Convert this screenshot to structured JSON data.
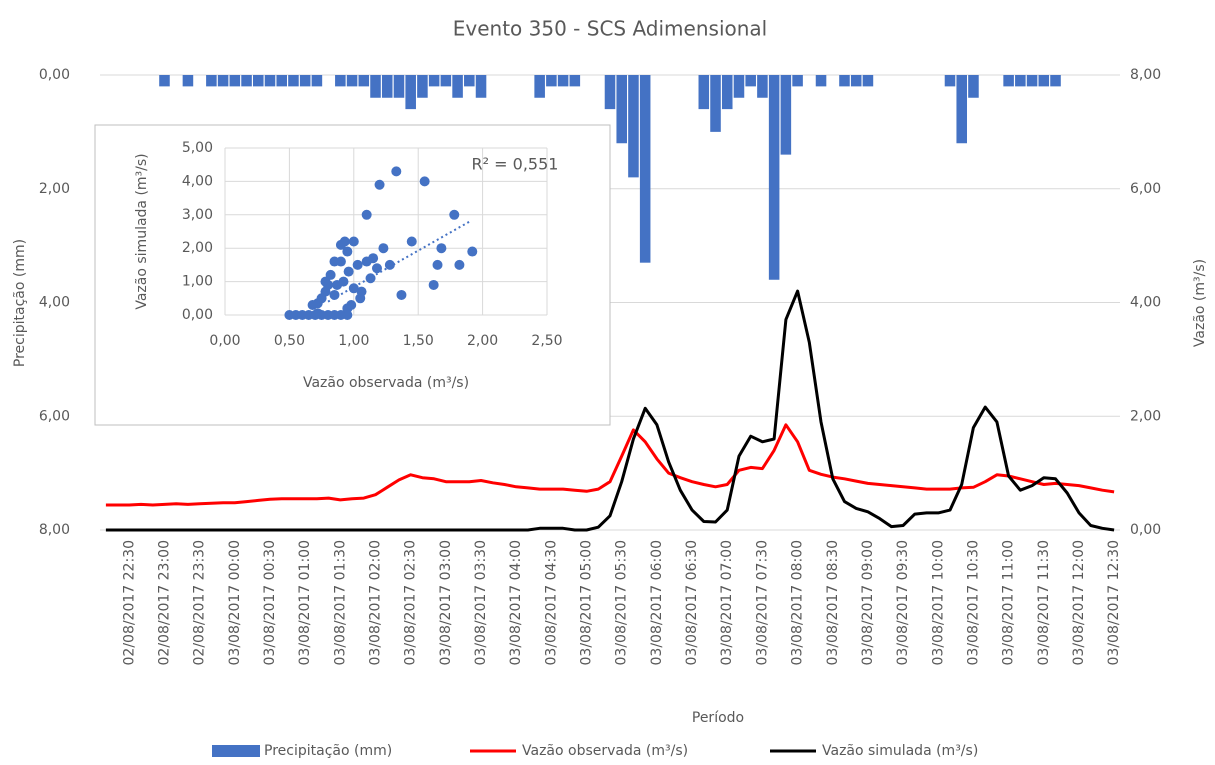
{
  "chart_data": [
    {
      "type": "combo",
      "title": "Evento 350 - SCS Adimensional",
      "x_label": "Período",
      "y_label": "Precipitação (mm)",
      "y2_label": "Vazão (m³/s)",
      "categories": [
        null,
        null,
        "02/08/2017 22:30",
        null,
        null,
        "02/08/2017 23:00",
        null,
        null,
        "02/08/2017 23:30",
        null,
        null,
        "03/08/2017 00:00",
        null,
        null,
        "03/08/2017 00:30",
        null,
        null,
        "03/08/2017 01:00",
        null,
        null,
        "03/08/2017 01:30",
        null,
        null,
        "03/08/2017 02:00",
        null,
        null,
        "03/08/2017 02:30",
        null,
        null,
        "03/08/2017 03:00",
        null,
        null,
        "03/08/2017 03:30",
        null,
        null,
        "03/08/2017 04:00",
        null,
        null,
        "03/08/2017 04:30",
        null,
        null,
        "03/08/2017 05:00",
        null,
        null,
        "03/08/2017 05:30",
        null,
        null,
        "03/08/2017 06:00",
        null,
        null,
        "03/08/2017 06:30",
        null,
        null,
        "03/08/2017 07:00",
        null,
        null,
        "03/08/2017 07:30",
        null,
        null,
        "03/08/2017 08:00",
        null,
        null,
        "03/08/2017 08:30",
        null,
        null,
        "03/08/2017 09:00",
        null,
        null,
        "03/08/2017 09:30",
        null,
        null,
        "03/08/2017 10:00",
        null,
        null,
        "03/08/2017 10:30",
        null,
        null,
        "03/08/2017 11:00",
        null,
        null,
        "03/08/2017 11:30",
        null,
        null,
        "03/08/2017 12:00",
        null,
        null,
        "03/08/2017 12:30"
      ],
      "series": [
        {
          "name": "Precipitação (mm)",
          "kind": "bar",
          "axis": "y",
          "color": "#4472c4",
          "values": [
            0,
            0,
            0,
            0,
            0,
            0.2,
            0,
            0.2,
            0,
            0.2,
            0.2,
            0.2,
            0.2,
            0.2,
            0.2,
            0.2,
            0.2,
            0.2,
            0.2,
            0,
            0.2,
            0.2,
            0.2,
            0.4,
            0.4,
            0.4,
            0.6,
            0.4,
            0.2,
            0.2,
            0.4,
            0.2,
            0.4,
            0,
            0,
            0,
            0,
            0.4,
            0.2,
            0.2,
            0.2,
            0,
            0,
            0.6,
            1.2,
            1.8,
            3.3,
            0,
            0,
            0,
            0,
            0.6,
            1.0,
            0.6,
            0.4,
            0.2,
            0.4,
            3.6,
            1.4,
            0.2,
            0,
            0.2,
            0,
            0.2,
            0.2,
            0.2,
            0,
            0,
            0,
            0,
            0,
            0,
            0.2,
            1.2,
            0.4,
            0,
            0,
            0.2,
            0.2,
            0.2,
            0.2,
            0.2,
            0,
            0,
            0,
            0,
            0
          ]
        },
        {
          "name": "Vazão observada (m³/s)",
          "kind": "line",
          "axis": "y2",
          "color": "#ff0000",
          "values": [
            0.44,
            0.44,
            0.44,
            0.45,
            0.44,
            0.45,
            0.46,
            0.45,
            0.46,
            0.47,
            0.48,
            0.48,
            0.5,
            0.52,
            0.54,
            0.55,
            0.55,
            0.55,
            0.55,
            0.56,
            0.53,
            0.55,
            0.56,
            0.62,
            0.75,
            0.88,
            0.97,
            0.92,
            0.9,
            0.85,
            0.85,
            0.85,
            0.87,
            0.83,
            0.8,
            0.76,
            0.74,
            0.72,
            0.72,
            0.72,
            0.7,
            0.68,
            0.72,
            0.85,
            1.3,
            1.76,
            1.55,
            1.25,
            1.0,
            0.92,
            0.85,
            0.8,
            0.76,
            0.8,
            1.05,
            1.1,
            1.08,
            1.4,
            1.85,
            1.55,
            1.05,
            0.98,
            0.93,
            0.9,
            0.86,
            0.82,
            0.8,
            0.78,
            0.76,
            0.74,
            0.72,
            0.72,
            0.72,
            0.74,
            0.75,
            0.85,
            0.97,
            0.95,
            0.9,
            0.85,
            0.8,
            0.82,
            0.8,
            0.78,
            0.74,
            0.7,
            0.67
          ]
        },
        {
          "name": "Vazão simulada (m³/s)",
          "kind": "line",
          "axis": "y2",
          "color": "#000000",
          "values": [
            0,
            0,
            0,
            0,
            0,
            0,
            0,
            0,
            0,
            0,
            0,
            0,
            0,
            0,
            0,
            0,
            0,
            0,
            0,
            0,
            0,
            0,
            0,
            0,
            0,
            0,
            0,
            0,
            0,
            0,
            0,
            0,
            0,
            0,
            0,
            0,
            0,
            0.03,
            0.03,
            0.03,
            0,
            0,
            0.05,
            0.25,
            0.85,
            1.6,
            2.14,
            1.85,
            1.2,
            0.7,
            0.35,
            0.15,
            0.14,
            0.35,
            1.3,
            1.65,
            1.55,
            1.6,
            3.7,
            4.2,
            3.3,
            1.9,
            0.9,
            0.5,
            0.38,
            0.32,
            0.2,
            0.06,
            0.08,
            0.28,
            0.3,
            0.3,
            0.35,
            0.8,
            1.8,
            2.16,
            1.9,
            0.95,
            0.7,
            0.78,
            0.92,
            0.9,
            0.65,
            0.3,
            0.08,
            0.03,
            0
          ]
        }
      ],
      "ylim": [
        0,
        8
      ],
      "y_reversed": true,
      "yticks": [
        {
          "value": 0,
          "label": "0,00"
        },
        {
          "value": 2,
          "label": "2,00"
        },
        {
          "value": 4,
          "label": "4,00"
        },
        {
          "value": 6,
          "label": "6,00"
        },
        {
          "value": 8,
          "label": "8,00"
        }
      ],
      "y2lim": [
        0,
        8
      ],
      "y2ticks": [
        {
          "value": 0,
          "label": "0,00"
        },
        {
          "value": 2,
          "label": "2,00"
        },
        {
          "value": 4,
          "label": "4,00"
        },
        {
          "value": 6,
          "label": "6,00"
        },
        {
          "value": 8,
          "label": "8,00"
        }
      ],
      "grid": true,
      "legend": "bottom"
    },
    {
      "type": "scatter",
      "x_label": "Vazão observada (m³/s)",
      "y_label": "Vazão simulada (m³/s)",
      "annotation": "R² = 0,551",
      "color": "#4472c4",
      "x": [
        0.5,
        0.55,
        0.6,
        0.65,
        0.7,
        0.72,
        0.75,
        0.8,
        0.85,
        0.9,
        0.95,
        0.68,
        0.72,
        0.75,
        0.78,
        0.8,
        0.82,
        0.78,
        0.85,
        0.87,
        0.85,
        0.9,
        0.93,
        0.95,
        0.9,
        0.92,
        0.96,
        1.0,
        1.03,
        1.0,
        1.05,
        1.06,
        0.95,
        0.98,
        1.1,
        1.1,
        1.13,
        1.15,
        1.18,
        1.2,
        1.23,
        1.28,
        1.33,
        1.37,
        1.45,
        1.55,
        1.62,
        1.65,
        1.68,
        1.78,
        1.82,
        1.92
      ],
      "values": [
        0,
        0,
        0,
        0,
        0,
        0.05,
        0,
        0,
        0,
        0,
        0,
        0.3,
        0.35,
        0.5,
        0.7,
        0.9,
        1.2,
        1.0,
        0.6,
        0.9,
        1.6,
        2.1,
        2.2,
        1.9,
        1.6,
        1.0,
        1.3,
        2.2,
        1.5,
        0.8,
        0.5,
        0.7,
        0.2,
        0.3,
        3.0,
        1.6,
        1.1,
        1.7,
        1.4,
        3.9,
        2.0,
        1.5,
        4.3,
        0.6,
        2.2,
        4.0,
        0.9,
        1.5,
        2.0,
        3.0,
        1.5,
        1.9
      ],
      "trendline": {
        "x": [
          0.8,
          1.9
        ],
        "values": [
          0.4,
          2.8
        ]
      },
      "xlim": [
        0,
        2.5
      ],
      "xticks": [
        {
          "value": 0,
          "label": "0,00"
        },
        {
          "value": 0.5,
          "label": "0,50"
        },
        {
          "value": 1,
          "label": "1,00"
        },
        {
          "value": 1.5,
          "label": "1,50"
        },
        {
          "value": 2,
          "label": "2,00"
        },
        {
          "value": 2.5,
          "label": "2,50"
        }
      ],
      "ylim": [
        0,
        5
      ],
      "yticks": [
        {
          "value": 0,
          "label": "0,00"
        },
        {
          "value": 1,
          "label": "1,00"
        },
        {
          "value": 2,
          "label": "2,00"
        },
        {
          "value": 3,
          "label": "3,00"
        },
        {
          "value": 4,
          "label": "4,00"
        },
        {
          "value": 5,
          "label": "5,00"
        }
      ],
      "grid": true
    }
  ]
}
